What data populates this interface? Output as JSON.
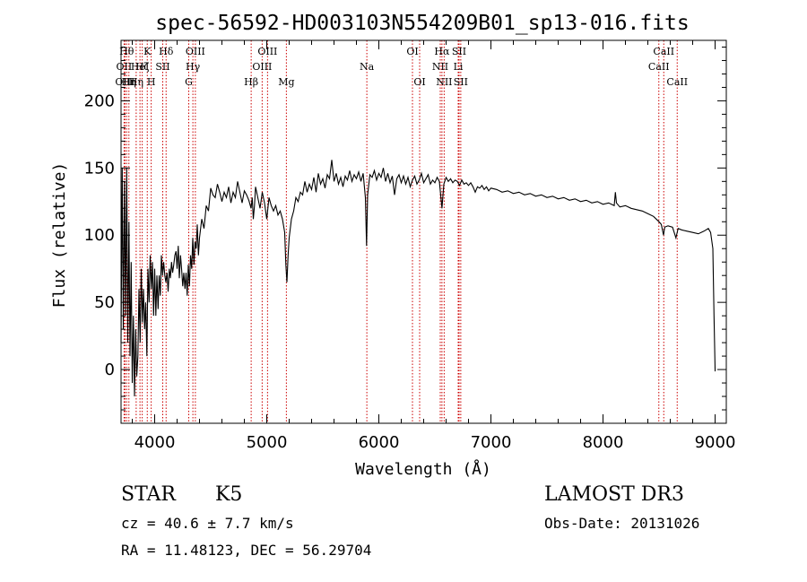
{
  "chart_data": {
    "type": "line",
    "title": "spec-56592-HD003103N554209B01_sp13-016.fits",
    "xlabel": "Wavelength (Å)",
    "ylabel": "Flux (relative)",
    "xlim": [
      3700,
      9100
    ],
    "ylim": [
      -40,
      245
    ],
    "xticks": [
      4000,
      5000,
      6000,
      7000,
      8000,
      9000
    ],
    "yticks": [
      0,
      50,
      100,
      150,
      200
    ],
    "x_minor_step": 200,
    "y_minor_step": 10,
    "series": [
      {
        "name": "spectrum",
        "color": "#000000",
        "points": [
          [
            3700,
            20
          ],
          [
            3710,
            150
          ],
          [
            3720,
            30
          ],
          [
            3730,
            140
          ],
          [
            3740,
            40
          ],
          [
            3750,
            150
          ],
          [
            3760,
            20
          ],
          [
            3770,
            110
          ],
          [
            3780,
            10
          ],
          [
            3790,
            80
          ],
          [
            3800,
            -10
          ],
          [
            3810,
            40
          ],
          [
            3820,
            -20
          ],
          [
            3830,
            30
          ],
          [
            3840,
            -5
          ],
          [
            3850,
            10
          ],
          [
            3860,
            60
          ],
          [
            3870,
            20
          ],
          [
            3880,
            75
          ],
          [
            3890,
            35
          ],
          [
            3900,
            60
          ],
          [
            3910,
            30
          ],
          [
            3920,
            50
          ],
          [
            3930,
            10
          ],
          [
            3940,
            75
          ],
          [
            3950,
            50
          ],
          [
            3960,
            85
          ],
          [
            3970,
            60
          ],
          [
            3980,
            80
          ],
          [
            3990,
            40
          ],
          [
            4000,
            75
          ],
          [
            4010,
            40
          ],
          [
            4020,
            70
          ],
          [
            4030,
            45
          ],
          [
            4040,
            70
          ],
          [
            4050,
            55
          ],
          [
            4060,
            85
          ],
          [
            4070,
            70
          ],
          [
            4080,
            80
          ],
          [
            4090,
            70
          ],
          [
            4100,
            65
          ],
          [
            4110,
            72
          ],
          [
            4120,
            58
          ],
          [
            4130,
            75
          ],
          [
            4140,
            68
          ],
          [
            4150,
            80
          ],
          [
            4160,
            72
          ],
          [
            4170,
            78
          ],
          [
            4180,
            85
          ],
          [
            4190,
            88
          ],
          [
            4200,
            75
          ],
          [
            4210,
            92
          ],
          [
            4220,
            68
          ],
          [
            4230,
            85
          ],
          [
            4240,
            75
          ],
          [
            4250,
            62
          ],
          [
            4260,
            72
          ],
          [
            4270,
            60
          ],
          [
            4280,
            72
          ],
          [
            4290,
            55
          ],
          [
            4300,
            78
          ],
          [
            4310,
            62
          ],
          [
            4320,
            85
          ],
          [
            4330,
            75
          ],
          [
            4340,
            98
          ],
          [
            4350,
            78
          ],
          [
            4360,
            95
          ],
          [
            4370,
            90
          ],
          [
            4380,
            108
          ],
          [
            4390,
            85
          ],
          [
            4400,
            98
          ],
          [
            4420,
            112
          ],
          [
            4440,
            105
          ],
          [
            4460,
            122
          ],
          [
            4480,
            118
          ],
          [
            4500,
            135
          ],
          [
            4520,
            130
          ],
          [
            4540,
            128
          ],
          [
            4560,
            138
          ],
          [
            4580,
            132
          ],
          [
            4600,
            125
          ],
          [
            4620,
            132
          ],
          [
            4640,
            128
          ],
          [
            4660,
            136
          ],
          [
            4680,
            124
          ],
          [
            4700,
            132
          ],
          [
            4720,
            128
          ],
          [
            4740,
            140
          ],
          [
            4760,
            132
          ],
          [
            4780,
            124
          ],
          [
            4800,
            133
          ],
          [
            4820,
            130
          ],
          [
            4840,
            126
          ],
          [
            4860,
            120
          ],
          [
            4870,
            128
          ],
          [
            4880,
            112
          ],
          [
            4890,
            122
          ],
          [
            4900,
            136
          ],
          [
            4920,
            128
          ],
          [
            4940,
            120
          ],
          [
            4960,
            132
          ],
          [
            4980,
            124
          ],
          [
            5000,
            112
          ],
          [
            5020,
            128
          ],
          [
            5040,
            122
          ],
          [
            5060,
            118
          ],
          [
            5080,
            122
          ],
          [
            5100,
            115
          ],
          [
            5120,
            118
          ],
          [
            5140,
            112
          ],
          [
            5160,
            102
          ],
          [
            5170,
            78
          ],
          [
            5180,
            65
          ],
          [
            5190,
            85
          ],
          [
            5200,
            98
          ],
          [
            5220,
            112
          ],
          [
            5240,
            118
          ],
          [
            5260,
            128
          ],
          [
            5280,
            125
          ],
          [
            5300,
            132
          ],
          [
            5320,
            130
          ],
          [
            5340,
            140
          ],
          [
            5360,
            132
          ],
          [
            5380,
            138
          ],
          [
            5400,
            134
          ],
          [
            5420,
            143
          ],
          [
            5440,
            132
          ],
          [
            5460,
            146
          ],
          [
            5480,
            138
          ],
          [
            5500,
            142
          ],
          [
            5520,
            135
          ],
          [
            5540,
            145
          ],
          [
            5560,
            142
          ],
          [
            5580,
            156
          ],
          [
            5600,
            140
          ],
          [
            5620,
            146
          ],
          [
            5640,
            138
          ],
          [
            5660,
            143
          ],
          [
            5680,
            136
          ],
          [
            5700,
            144
          ],
          [
            5720,
            141
          ],
          [
            5740,
            148
          ],
          [
            5760,
            140
          ],
          [
            5780,
            145
          ],
          [
            5800,
            142
          ],
          [
            5820,
            147
          ],
          [
            5840,
            140
          ],
          [
            5860,
            146
          ],
          [
            5880,
            128
          ],
          [
            5890,
            92
          ],
          [
            5900,
            130
          ],
          [
            5920,
            145
          ],
          [
            5940,
            143
          ],
          [
            5960,
            148
          ],
          [
            5980,
            141
          ],
          [
            6000,
            146
          ],
          [
            6020,
            143
          ],
          [
            6040,
            150
          ],
          [
            6060,
            140
          ],
          [
            6080,
            146
          ],
          [
            6100,
            139
          ],
          [
            6120,
            144
          ],
          [
            6140,
            130
          ],
          [
            6160,
            142
          ],
          [
            6180,
            145
          ],
          [
            6200,
            139
          ],
          [
            6220,
            144
          ],
          [
            6240,
            138
          ],
          [
            6260,
            143
          ],
          [
            6280,
            136
          ],
          [
            6300,
            141
          ],
          [
            6320,
            144
          ],
          [
            6340,
            138
          ],
          [
            6360,
            141
          ],
          [
            6380,
            146
          ],
          [
            6400,
            139
          ],
          [
            6420,
            142
          ],
          [
            6440,
            145
          ],
          [
            6460,
            138
          ],
          [
            6480,
            141
          ],
          [
            6500,
            139
          ],
          [
            6520,
            143
          ],
          [
            6540,
            140
          ],
          [
            6563,
            120
          ],
          [
            6580,
            138
          ],
          [
            6600,
            143
          ],
          [
            6620,
            140
          ],
          [
            6640,
            142
          ],
          [
            6660,
            139
          ],
          [
            6680,
            141
          ],
          [
            6700,
            140
          ],
          [
            6720,
            137
          ],
          [
            6740,
            141
          ],
          [
            6760,
            138
          ],
          [
            6780,
            139
          ],
          [
            6800,
            137
          ],
          [
            6820,
            139
          ],
          [
            6840,
            136
          ],
          [
            6860,
            132
          ],
          [
            6880,
            136
          ],
          [
            6900,
            135
          ],
          [
            6920,
            137
          ],
          [
            6940,
            134
          ],
          [
            6960,
            136
          ],
          [
            6980,
            133
          ],
          [
            7000,
            135
          ],
          [
            7050,
            134
          ],
          [
            7100,
            132
          ],
          [
            7150,
            133
          ],
          [
            7200,
            131
          ],
          [
            7250,
            132
          ],
          [
            7300,
            130
          ],
          [
            7350,
            131
          ],
          [
            7400,
            129
          ],
          [
            7450,
            130
          ],
          [
            7500,
            128
          ],
          [
            7550,
            129
          ],
          [
            7600,
            127
          ],
          [
            7650,
            128
          ],
          [
            7700,
            126
          ],
          [
            7750,
            127
          ],
          [
            7800,
            125
          ],
          [
            7850,
            126
          ],
          [
            7900,
            124
          ],
          [
            7950,
            125
          ],
          [
            8000,
            123
          ],
          [
            8050,
            124
          ],
          [
            8100,
            122
          ],
          [
            8110,
            132
          ],
          [
            8120,
            124
          ],
          [
            8150,
            121
          ],
          [
            8200,
            122
          ],
          [
            8250,
            120
          ],
          [
            8300,
            119
          ],
          [
            8350,
            118
          ],
          [
            8400,
            116
          ],
          [
            8450,
            114
          ],
          [
            8500,
            110
          ],
          [
            8520,
            108
          ],
          [
            8540,
            100
          ],
          [
            8550,
            106
          ],
          [
            8580,
            107
          ],
          [
            8620,
            106
          ],
          [
            8650,
            98
          ],
          [
            8670,
            105
          ],
          [
            8700,
            104
          ],
          [
            8750,
            103
          ],
          [
            8800,
            102
          ],
          [
            8850,
            101
          ],
          [
            8900,
            103
          ],
          [
            8940,
            105
          ],
          [
            8960,
            102
          ],
          [
            8980,
            90
          ],
          [
            8990,
            40
          ],
          [
            9000,
            0
          ]
        ]
      }
    ],
    "line_markers": [
      {
        "wavelength": 3727,
        "label": "OII",
        "row": 1
      },
      {
        "wavelength": 3735,
        "label": "OIII",
        "row": 2
      },
      {
        "wavelength": 3750,
        "label": "Hθ",
        "row": 0
      },
      {
        "wavelength": 3770,
        "label": "Hη",
        "row": 2
      },
      {
        "wavelength": 3835,
        "label": "Hη",
        "row": 2
      },
      {
        "wavelength": 3869,
        "label": "HeI",
        "row": 1
      },
      {
        "wavelength": 3889,
        "label": "Hζ",
        "row": 1
      },
      {
        "wavelength": 3934,
        "label": "K",
        "row": 0
      },
      {
        "wavelength": 3969,
        "label": "H",
        "row": 2
      },
      {
        "wavelength": 4072,
        "label": "SII",
        "row": 1
      },
      {
        "wavelength": 4102,
        "label": "Hδ",
        "row": 0
      },
      {
        "wavelength": 4304,
        "label": "G",
        "row": 2
      },
      {
        "wavelength": 4341,
        "label": "Hγ",
        "row": 1
      },
      {
        "wavelength": 4363,
        "label": "OIII",
        "row": 0
      },
      {
        "wavelength": 4861,
        "label": "Hβ",
        "row": 2
      },
      {
        "wavelength": 4959,
        "label": "OIII",
        "row": 1
      },
      {
        "wavelength": 5007,
        "label": "OIII",
        "row": 0
      },
      {
        "wavelength": 5175,
        "label": "Mg",
        "row": 2
      },
      {
        "wavelength": 5893,
        "label": "Na",
        "row": 1
      },
      {
        "wavelength": 6300,
        "label": "OI",
        "row": 0
      },
      {
        "wavelength": 6364,
        "label": "OI",
        "row": 2
      },
      {
        "wavelength": 6548,
        "label": "NII",
        "row": 1
      },
      {
        "wavelength": 6563,
        "label": "Hα",
        "row": 0
      },
      {
        "wavelength": 6583,
        "label": "NII",
        "row": 2
      },
      {
        "wavelength": 6708,
        "label": "Li",
        "row": 1
      },
      {
        "wavelength": 6716,
        "label": "SII",
        "row": 0
      },
      {
        "wavelength": 6731,
        "label": "SII",
        "row": 2
      },
      {
        "wavelength": 8498,
        "label": "CaII",
        "row": 1
      },
      {
        "wavelength": 8542,
        "label": "CaII",
        "row": 0
      },
      {
        "wavelength": 8662,
        "label": "CaII",
        "row": 2
      }
    ],
    "marker_color": "#cc0000"
  },
  "info": {
    "class_label": "STAR",
    "subclass": "K5",
    "survey": "LAMOST DR3",
    "cz": "cz = 40.6 ± 7.7 km/s",
    "obs_date": "Obs-Date: 20131026",
    "radec": "RA =  11.48123, DEC =  56.29704"
  }
}
